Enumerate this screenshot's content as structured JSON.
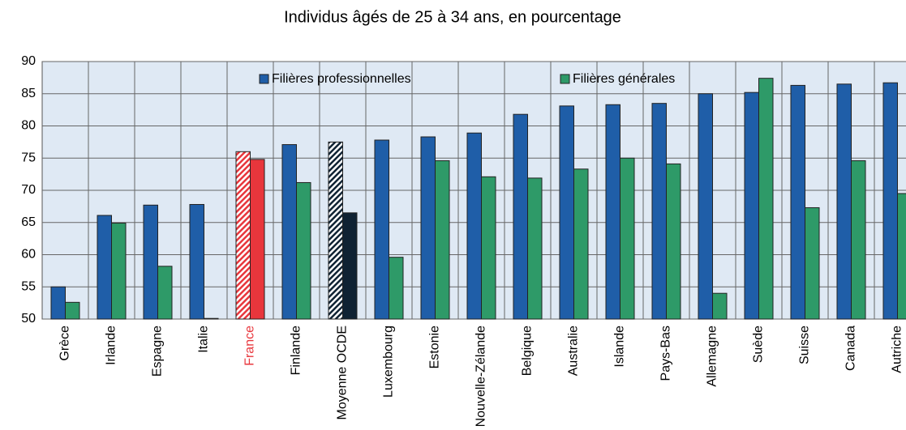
{
  "chart_data": {
    "type": "bar",
    "title": "Individus âgés de 25 à 34 ans, en pourcentage",
    "categories": [
      "Grèce",
      "Irlande",
      "Espagne",
      "Italie",
      "France",
      "Finlande",
      "Moyenne OCDE",
      "Luxembourg",
      "Estonie",
      "Nouvelle-Zélande",
      "Belgique",
      "Australie",
      "Islande",
      "Pays-Bas",
      "Allemagne",
      "Suède",
      "Suisse",
      "Canada",
      "Autriche"
    ],
    "series": [
      {
        "name": "Filières professionnelles",
        "color": "#1f5ea8",
        "values": [
          55.0,
          66.1,
          67.7,
          67.8,
          76.0,
          77.1,
          77.5,
          77.8,
          78.3,
          78.9,
          81.8,
          83.1,
          83.3,
          83.5,
          85.0,
          85.2,
          86.3,
          86.5,
          86.7
        ]
      },
      {
        "name": "Filières générales",
        "color": "#2e9a68",
        "values": [
          52.6,
          64.9,
          58.2,
          50.1,
          74.8,
          71.2,
          66.5,
          59.6,
          74.6,
          72.1,
          71.9,
          73.3,
          75.0,
          74.1,
          54.0,
          87.4,
          67.3,
          74.6,
          69.5
        ]
      }
    ],
    "highlight_colors": [
      null,
      null,
      null,
      null,
      "#e8363c",
      null,
      "#0f2233",
      null,
      null,
      null,
      null,
      null,
      null,
      null,
      null,
      null,
      null,
      null,
      null
    ],
    "ylim": [
      50,
      90
    ],
    "yticks": [
      50,
      55,
      60,
      65,
      70,
      75,
      80,
      85,
      90
    ],
    "grid": true
  }
}
